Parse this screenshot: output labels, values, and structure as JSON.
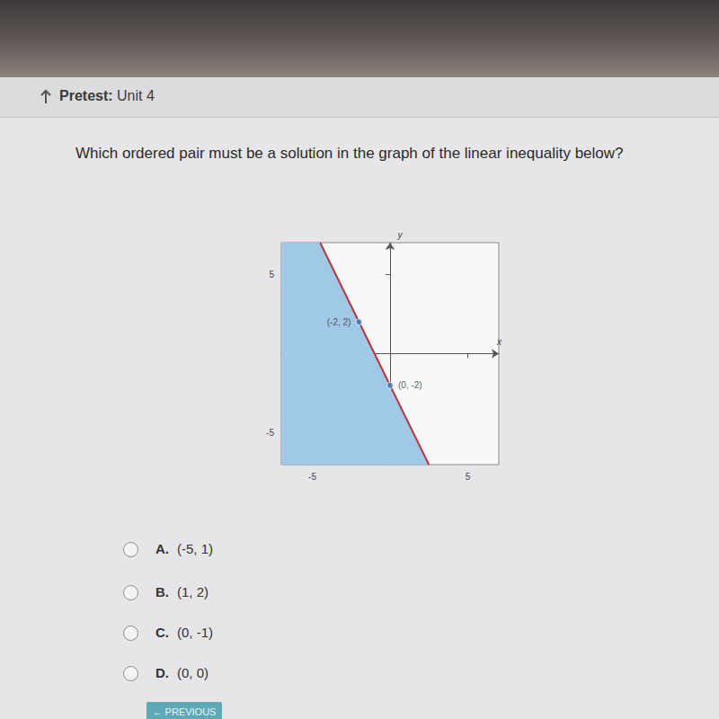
{
  "header": {
    "label": "Pretest:",
    "title": "Unit 4"
  },
  "question": "Which ordered pair must be a solution in the graph of the linear inequality below?",
  "chart_data": {
    "type": "line",
    "x_label": "x",
    "y_label": "y",
    "xlim": [
      -7,
      7
    ],
    "ylim": [
      -7,
      7
    ],
    "xticks": [
      -5,
      5
    ],
    "yticks": [
      -5,
      5
    ],
    "grid": false,
    "series": [
      {
        "type": "area",
        "color": "#9fc9e6",
        "x": [
          -7,
          -4.5,
          2.5,
          -7
        ],
        "values": [
          7,
          7,
          -7,
          -7
        ]
      },
      {
        "type": "line",
        "color": "#b8343d",
        "x": [
          -4.5,
          2.5
        ],
        "values": [
          7,
          -7
        ]
      },
      {
        "type": "scatter",
        "color": "#3a7fc4",
        "x": [
          -2,
          0
        ],
        "values": [
          2,
          -2
        ],
        "value_labels": [
          "(-2, 2)",
          "(0, -2)"
        ],
        "data_labels": true
      }
    ]
  },
  "options": [
    {
      "letter": "A.",
      "text": "(-5, 1)"
    },
    {
      "letter": "B.",
      "text": "(1, 2)"
    },
    {
      "letter": "C.",
      "text": "(0, -1)"
    },
    {
      "letter": "D.",
      "text": "(0, 0)"
    }
  ],
  "button": "PREVIOUS"
}
